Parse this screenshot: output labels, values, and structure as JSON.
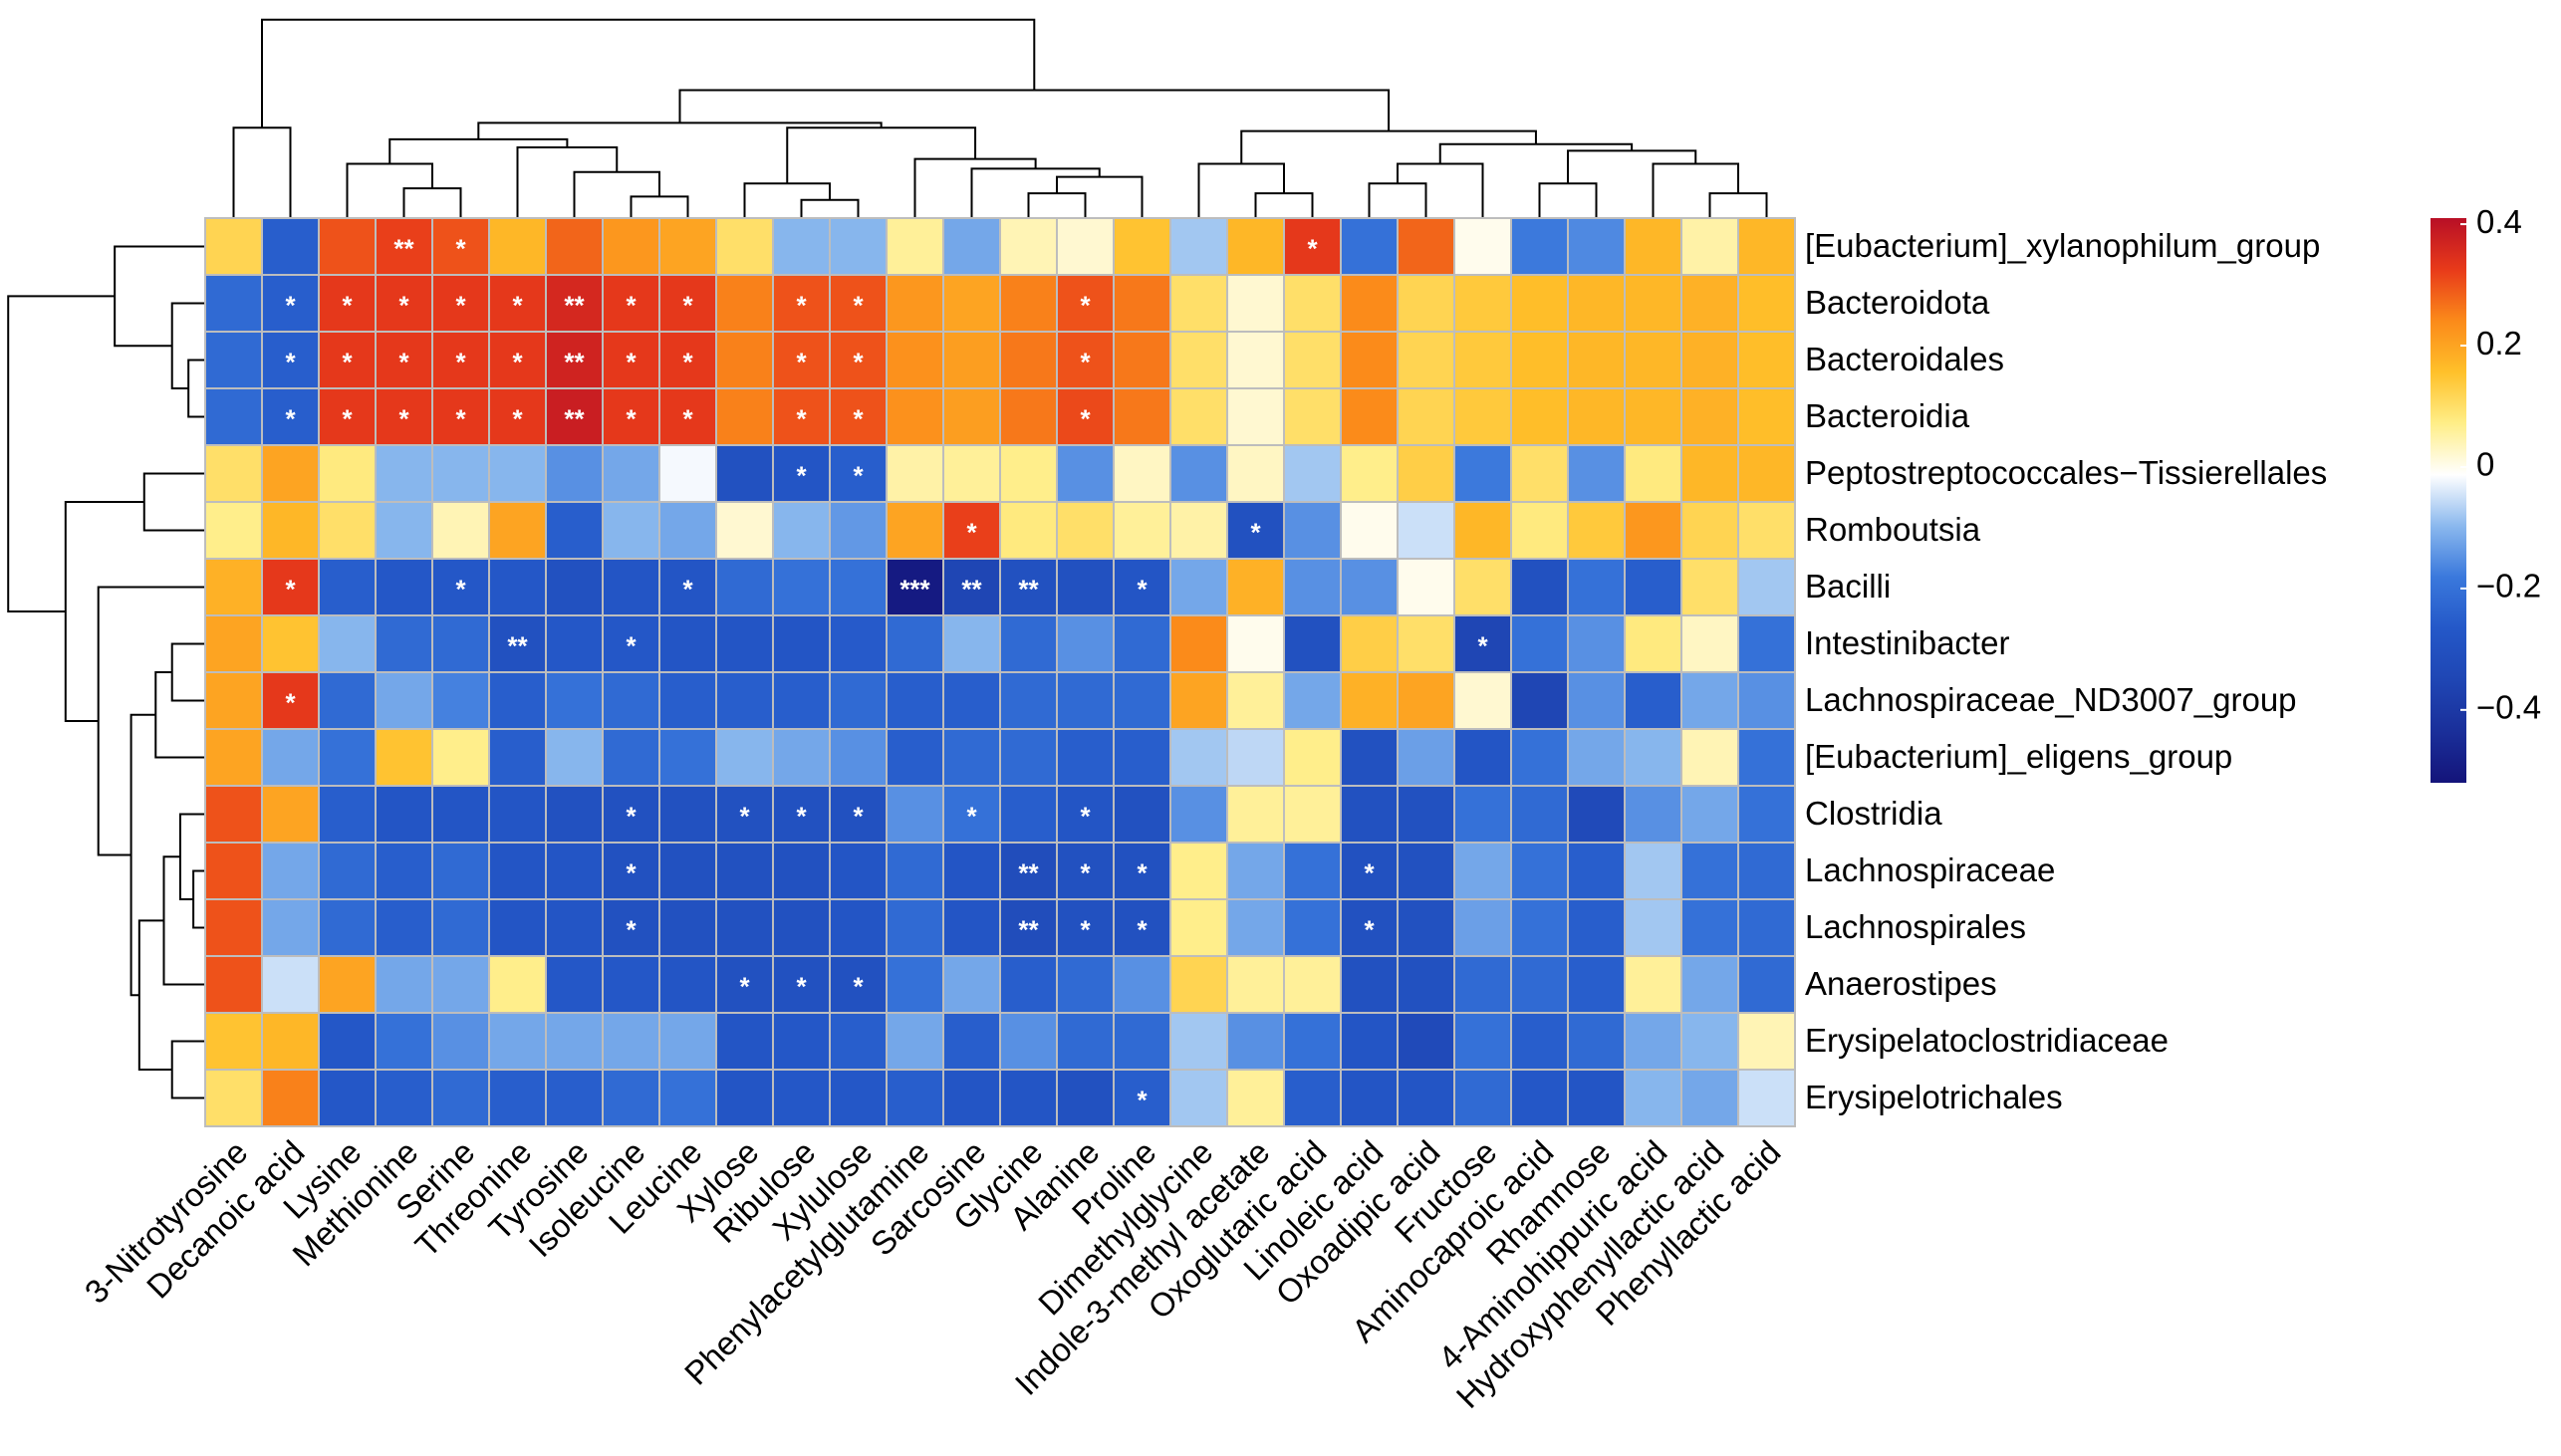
{
  "chart_data": {
    "type": "heatmap",
    "columns": [
      "3-Nitrotyrosine",
      "Decanoic acid",
      "Lysine",
      "Methionine",
      "Serine",
      "Threonine",
      "Tyrosine",
      "Isoleucine",
      "Leucine",
      "Xylose",
      "Ribulose",
      "Xylulose",
      "Phenylacetylglutamine",
      "Sarcosine",
      "Glycine",
      "Alanine",
      "Proline",
      "Dimethylglycine",
      "Indole-3-methyl acetate",
      "Oxoglutaric acid",
      "Linoleic acid",
      "Oxoadipic acid",
      "Fructose",
      "Aminocaproic acid",
      "Rhamnose",
      "4-Aminohippuric acid",
      "Hydroxyphenyllactic acid",
      "Phenyllactic acid"
    ],
    "rows": [
      "[Eubacterium]_xylanophilum_group",
      "Bacteroidota",
      "Bacteroidales",
      "Bacteroidia",
      "Peptostreptococcales−Tissierellales",
      "Romboutsia",
      "Bacilli",
      "Intestinibacter",
      "Lachnospiraceae_ND3007_group",
      "[Eubacterium]_eligens_group",
      "Clostridia",
      "Lachnospiraceae",
      "Lachnospirales",
      "Anaerostipes",
      "Erysipelatoclostridiaceae",
      "Erysipelotrichales"
    ],
    "values": [
      [
        0.12,
        -0.25,
        0.3,
        0.32,
        0.3,
        0.17,
        0.28,
        0.22,
        0.2,
        0.1,
        -0.1,
        -0.1,
        0.06,
        -0.12,
        0.04,
        0.02,
        0.15,
        -0.08,
        0.17,
        0.33,
        -0.2,
        0.28,
        0,
        -0.18,
        -0.16,
        0.17,
        0.05,
        0.17
      ],
      [
        -0.22,
        -0.25,
        0.33,
        0.33,
        0.33,
        0.33,
        0.36,
        0.33,
        0.33,
        0.25,
        0.3,
        0.3,
        0.22,
        0.2,
        0.25,
        0.3,
        0.26,
        0.1,
        0.02,
        0.1,
        0.24,
        0.12,
        0.14,
        0.16,
        0.17,
        0.17,
        0.18,
        0.16
      ],
      [
        -0.22,
        -0.25,
        0.33,
        0.33,
        0.33,
        0.33,
        0.37,
        0.33,
        0.33,
        0.25,
        0.3,
        0.3,
        0.23,
        0.21,
        0.26,
        0.3,
        0.26,
        0.1,
        0.02,
        0.1,
        0.24,
        0.12,
        0.14,
        0.16,
        0.17,
        0.17,
        0.18,
        0.16
      ],
      [
        -0.22,
        -0.25,
        0.33,
        0.33,
        0.33,
        0.33,
        0.38,
        0.33,
        0.33,
        0.25,
        0.3,
        0.3,
        0.23,
        0.21,
        0.26,
        0.31,
        0.26,
        0.1,
        0.02,
        0.1,
        0.24,
        0.12,
        0.14,
        0.16,
        0.17,
        0.17,
        0.18,
        0.16
      ],
      [
        0.1,
        0.2,
        0.08,
        -0.1,
        -0.1,
        -0.1,
        -0.15,
        -0.12,
        -0.02,
        -0.3,
        -0.28,
        -0.25,
        0.05,
        0.06,
        0.07,
        -0.15,
        0.03,
        -0.15,
        0.03,
        -0.08,
        0.07,
        0.13,
        -0.18,
        0.1,
        -0.15,
        0.08,
        0.17,
        0.17
      ],
      [
        0.07,
        0.17,
        0.1,
        -0.1,
        0.04,
        0.2,
        -0.25,
        -0.1,
        -0.12,
        0.02,
        -0.1,
        -0.14,
        0.2,
        0.32,
        0.08,
        0.1,
        0.06,
        0.05,
        -0.3,
        -0.15,
        0,
        -0.05,
        0.17,
        0.08,
        0.14,
        0.22,
        0.12,
        0.1
      ],
      [
        0.18,
        0.33,
        -0.25,
        -0.27,
        -0.27,
        -0.27,
        -0.3,
        -0.28,
        -0.28,
        -0.22,
        -0.2,
        -0.2,
        -0.5,
        -0.35,
        -0.3,
        -0.3,
        -0.28,
        -0.12,
        0.18,
        -0.15,
        -0.15,
        0,
        0.1,
        -0.3,
        -0.2,
        -0.25,
        0.1,
        -0.08
      ],
      [
        0.2,
        0.15,
        -0.1,
        -0.22,
        -0.22,
        -0.3,
        -0.27,
        -0.27,
        -0.28,
        -0.28,
        -0.28,
        -0.26,
        -0.22,
        -0.1,
        -0.22,
        -0.15,
        -0.22,
        0.24,
        0,
        -0.3,
        0.13,
        0.1,
        -0.35,
        -0.2,
        -0.15,
        0.08,
        0.03,
        -0.2
      ],
      [
        0.2,
        0.33,
        -0.22,
        -0.12,
        -0.17,
        -0.25,
        -0.2,
        -0.22,
        -0.25,
        -0.25,
        -0.25,
        -0.22,
        -0.25,
        -0.25,
        -0.22,
        -0.22,
        -0.22,
        0.2,
        0.06,
        -0.12,
        0.18,
        0.2,
        0.02,
        -0.35,
        -0.15,
        -0.25,
        -0.12,
        -0.15
      ],
      [
        0.2,
        -0.12,
        -0.2,
        0.15,
        0.07,
        -0.25,
        -0.1,
        -0.22,
        -0.2,
        -0.1,
        -0.12,
        -0.15,
        -0.25,
        -0.22,
        -0.22,
        -0.25,
        -0.25,
        -0.08,
        -0.06,
        0.07,
        -0.3,
        -0.13,
        -0.28,
        -0.2,
        -0.12,
        -0.1,
        0.04,
        -0.2
      ],
      [
        0.3,
        0.2,
        -0.25,
        -0.28,
        -0.28,
        -0.28,
        -0.3,
        -0.3,
        -0.3,
        -0.3,
        -0.3,
        -0.3,
        -0.15,
        -0.2,
        -0.25,
        -0.28,
        -0.3,
        -0.15,
        0.06,
        0.06,
        -0.3,
        -0.3,
        -0.2,
        -0.22,
        -0.33,
        -0.15,
        -0.12,
        -0.2
      ],
      [
        0.3,
        -0.12,
        -0.22,
        -0.25,
        -0.22,
        -0.28,
        -0.28,
        -0.3,
        -0.3,
        -0.3,
        -0.3,
        -0.28,
        -0.22,
        -0.28,
        -0.32,
        -0.3,
        -0.3,
        0.07,
        -0.12,
        -0.2,
        -0.3,
        -0.3,
        -0.12,
        -0.2,
        -0.25,
        -0.08,
        -0.2,
        -0.22
      ],
      [
        0.3,
        -0.12,
        -0.22,
        -0.25,
        -0.22,
        -0.28,
        -0.28,
        -0.3,
        -0.3,
        -0.3,
        -0.3,
        -0.28,
        -0.22,
        -0.28,
        -0.32,
        -0.3,
        -0.3,
        0.07,
        -0.12,
        -0.2,
        -0.3,
        -0.3,
        -0.13,
        -0.2,
        -0.25,
        -0.08,
        -0.2,
        -0.22
      ],
      [
        0.3,
        -0.05,
        0.2,
        -0.12,
        -0.12,
        0.07,
        -0.27,
        -0.27,
        -0.28,
        -0.3,
        -0.3,
        -0.3,
        -0.2,
        -0.12,
        -0.25,
        -0.22,
        -0.15,
        0.12,
        0.06,
        0.06,
        -0.3,
        -0.3,
        -0.22,
        -0.22,
        -0.25,
        0.06,
        -0.12,
        -0.22
      ],
      [
        0.15,
        0.17,
        -0.27,
        -0.2,
        -0.15,
        -0.12,
        -0.12,
        -0.12,
        -0.12,
        -0.28,
        -0.27,
        -0.25,
        -0.12,
        -0.25,
        -0.15,
        -0.22,
        -0.22,
        -0.08,
        -0.15,
        -0.2,
        -0.28,
        -0.33,
        -0.2,
        -0.25,
        -0.22,
        -0.12,
        -0.1,
        0.04
      ],
      [
        0.1,
        0.25,
        -0.27,
        -0.25,
        -0.22,
        -0.25,
        -0.25,
        -0.22,
        -0.2,
        -0.28,
        -0.27,
        -0.27,
        -0.25,
        -0.28,
        -0.28,
        -0.3,
        -0.25,
        -0.08,
        0.06,
        -0.25,
        -0.28,
        -0.28,
        -0.22,
        -0.27,
        -0.28,
        -0.1,
        -0.12,
        -0.05
      ]
    ],
    "annotations": [
      {
        "row": 0,
        "col": 3,
        "label": "**"
      },
      {
        "row": 0,
        "col": 4,
        "label": "*"
      },
      {
        "row": 0,
        "col": 19,
        "label": "*"
      },
      {
        "row": 1,
        "col": 1,
        "label": "*"
      },
      {
        "row": 1,
        "col": 2,
        "label": "*"
      },
      {
        "row": 1,
        "col": 3,
        "label": "*"
      },
      {
        "row": 1,
        "col": 4,
        "label": "*"
      },
      {
        "row": 1,
        "col": 5,
        "label": "*"
      },
      {
        "row": 1,
        "col": 6,
        "label": "**"
      },
      {
        "row": 1,
        "col": 7,
        "label": "*"
      },
      {
        "row": 1,
        "col": 8,
        "label": "*"
      },
      {
        "row": 1,
        "col": 10,
        "label": "*"
      },
      {
        "row": 1,
        "col": 11,
        "label": "*"
      },
      {
        "row": 1,
        "col": 15,
        "label": "*"
      },
      {
        "row": 2,
        "col": 1,
        "label": "*"
      },
      {
        "row": 2,
        "col": 2,
        "label": "*"
      },
      {
        "row": 2,
        "col": 3,
        "label": "*"
      },
      {
        "row": 2,
        "col": 4,
        "label": "*"
      },
      {
        "row": 2,
        "col": 5,
        "label": "*"
      },
      {
        "row": 2,
        "col": 6,
        "label": "**"
      },
      {
        "row": 2,
        "col": 7,
        "label": "*"
      },
      {
        "row": 2,
        "col": 8,
        "label": "*"
      },
      {
        "row": 2,
        "col": 10,
        "label": "*"
      },
      {
        "row": 2,
        "col": 11,
        "label": "*"
      },
      {
        "row": 2,
        "col": 15,
        "label": "*"
      },
      {
        "row": 3,
        "col": 1,
        "label": "*"
      },
      {
        "row": 3,
        "col": 2,
        "label": "*"
      },
      {
        "row": 3,
        "col": 3,
        "label": "*"
      },
      {
        "row": 3,
        "col": 4,
        "label": "*"
      },
      {
        "row": 3,
        "col": 5,
        "label": "*"
      },
      {
        "row": 3,
        "col": 6,
        "label": "**"
      },
      {
        "row": 3,
        "col": 7,
        "label": "*"
      },
      {
        "row": 3,
        "col": 8,
        "label": "*"
      },
      {
        "row": 3,
        "col": 10,
        "label": "*"
      },
      {
        "row": 3,
        "col": 11,
        "label": "*"
      },
      {
        "row": 3,
        "col": 15,
        "label": "*"
      },
      {
        "row": 4,
        "col": 10,
        "label": "*"
      },
      {
        "row": 4,
        "col": 11,
        "label": "*"
      },
      {
        "row": 5,
        "col": 13,
        "label": "*"
      },
      {
        "row": 5,
        "col": 18,
        "label": "*"
      },
      {
        "row": 6,
        "col": 1,
        "label": "*"
      },
      {
        "row": 6,
        "col": 4,
        "label": "*"
      },
      {
        "row": 6,
        "col": 8,
        "label": "*"
      },
      {
        "row": 6,
        "col": 12,
        "label": "***"
      },
      {
        "row": 6,
        "col": 13,
        "label": "**"
      },
      {
        "row": 6,
        "col": 14,
        "label": "**"
      },
      {
        "row": 6,
        "col": 16,
        "label": "*"
      },
      {
        "row": 7,
        "col": 5,
        "label": "**"
      },
      {
        "row": 7,
        "col": 7,
        "label": "*"
      },
      {
        "row": 7,
        "col": 22,
        "label": "*"
      },
      {
        "row": 8,
        "col": 1,
        "label": "*"
      },
      {
        "row": 10,
        "col": 7,
        "label": "*"
      },
      {
        "row": 10,
        "col": 9,
        "label": "*"
      },
      {
        "row": 10,
        "col": 10,
        "label": "*"
      },
      {
        "row": 10,
        "col": 11,
        "label": "*"
      },
      {
        "row": 10,
        "col": 13,
        "label": "*"
      },
      {
        "row": 10,
        "col": 15,
        "label": "*"
      },
      {
        "row": 11,
        "col": 7,
        "label": "*"
      },
      {
        "row": 11,
        "col": 14,
        "label": "**"
      },
      {
        "row": 11,
        "col": 15,
        "label": "*"
      },
      {
        "row": 11,
        "col": 16,
        "label": "*"
      },
      {
        "row": 11,
        "col": 20,
        "label": "*"
      },
      {
        "row": 12,
        "col": 7,
        "label": "*"
      },
      {
        "row": 12,
        "col": 14,
        "label": "**"
      },
      {
        "row": 12,
        "col": 15,
        "label": "*"
      },
      {
        "row": 12,
        "col": 16,
        "label": "*"
      },
      {
        "row": 12,
        "col": 20,
        "label": "*"
      },
      {
        "row": 13,
        "col": 9,
        "label": "*"
      },
      {
        "row": 13,
        "col": 10,
        "label": "*"
      },
      {
        "row": 13,
        "col": 11,
        "label": "*"
      },
      {
        "row": 15,
        "col": 16,
        "label": "*"
      }
    ],
    "colorscale": [
      "#14147a",
      "#1a2f9a",
      "#1f46b4",
      "#2458c8",
      "#3a78dc",
      "#8ab8ee",
      "#ffffff",
      "#ffee88",
      "#ffc02a",
      "#fb8a1a",
      "#e83a1a",
      "#b80f26"
    ],
    "clim": [
      -0.52,
      0.41
    ],
    "cticks": [
      0.4,
      0.2,
      0,
      {
        "value": -0.2,
        "label": "−0.2"
      },
      {
        "value": -0.4,
        "label": "−0.4"
      }
    ]
  }
}
